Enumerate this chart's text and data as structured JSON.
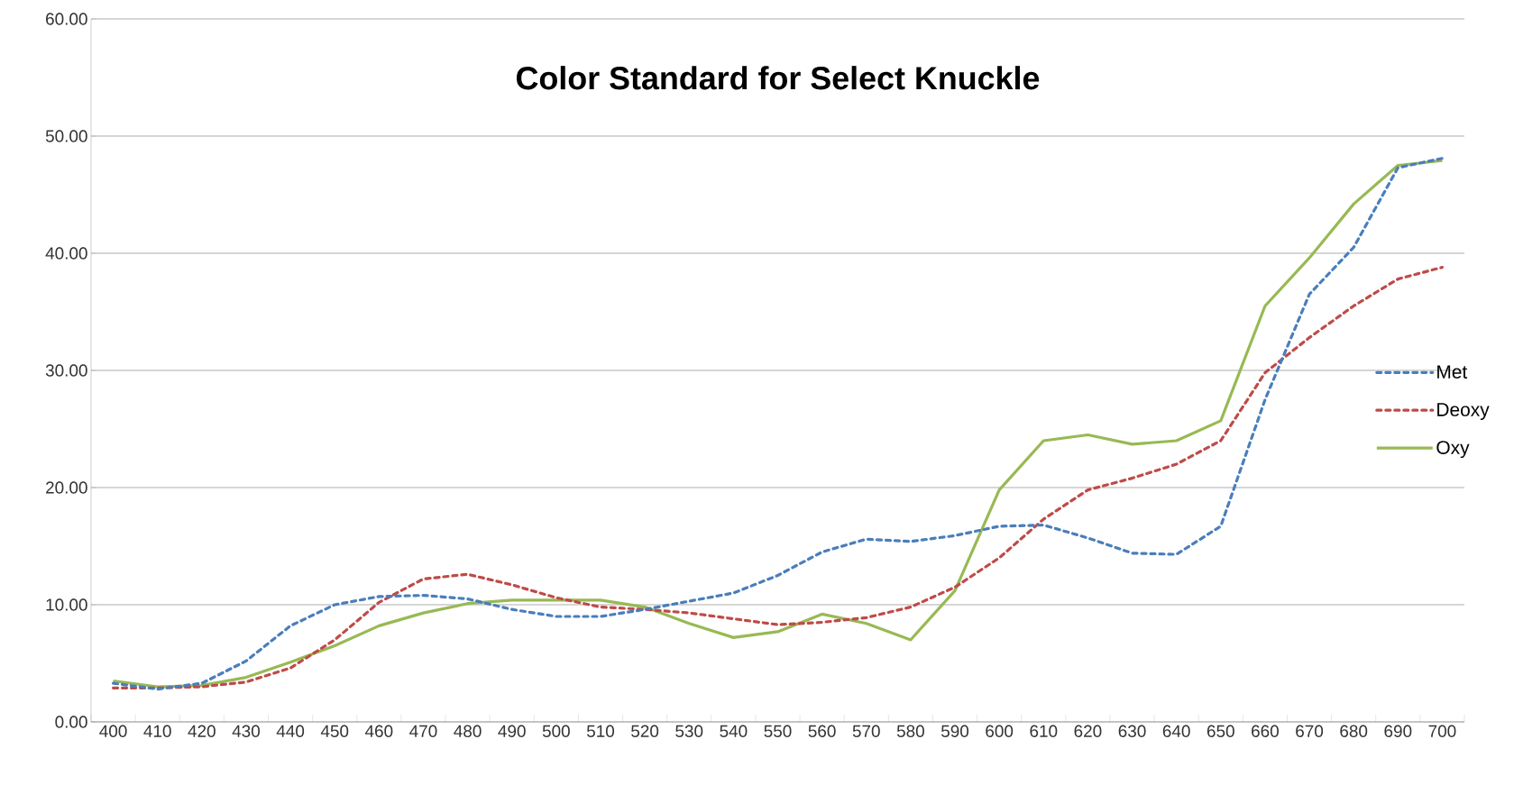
{
  "chart_data": {
    "type": "line",
    "title": "Color Standard for Select Knuckle",
    "categories": [
      "400",
      "410",
      "420",
      "430",
      "440",
      "450",
      "460",
      "470",
      "480",
      "490",
      "500",
      "510",
      "520",
      "530",
      "540",
      "550",
      "560",
      "570",
      "580",
      "590",
      "600",
      "610",
      "620",
      "630",
      "640",
      "650",
      "660",
      "670",
      "680",
      "690",
      "700"
    ],
    "series": [
      {
        "name": "Met",
        "color": "#4a7ebb",
        "line_style": "dashed",
        "values": [
          3.3,
          2.8,
          3.3,
          5.2,
          8.2,
          10.0,
          10.7,
          10.8,
          10.5,
          9.6,
          9.0,
          9.0,
          9.6,
          10.3,
          11.0,
          12.5,
          14.5,
          15.6,
          15.4,
          15.9,
          16.7,
          16.8,
          15.7,
          14.4,
          14.3,
          16.7,
          27.5,
          36.5,
          40.5,
          47.3,
          48.1
        ]
      },
      {
        "name": "Deoxy",
        "color": "#be4b48",
        "line_style": "dashed",
        "values": [
          2.9,
          2.9,
          3.0,
          3.4,
          4.6,
          7.0,
          10.2,
          12.2,
          12.6,
          11.7,
          10.6,
          9.8,
          9.6,
          9.3,
          8.8,
          8.3,
          8.5,
          8.9,
          9.8,
          11.5,
          14.0,
          17.3,
          19.8,
          20.8,
          22.0,
          24.0,
          29.8,
          32.8,
          35.5,
          37.8,
          38.8
        ]
      },
      {
        "name": "Oxy",
        "color": "#98b954",
        "line_style": "solid",
        "values": [
          3.5,
          3.0,
          3.1,
          3.8,
          5.1,
          6.5,
          8.2,
          9.3,
          10.1,
          10.4,
          10.4,
          10.4,
          9.8,
          8.4,
          7.2,
          7.7,
          9.2,
          8.4,
          7.0,
          11.2,
          19.8,
          24.0,
          24.5,
          23.7,
          24.0,
          25.7,
          35.5,
          39.6,
          44.2,
          47.5,
          47.9
        ]
      }
    ],
    "ylim": [
      0,
      60
    ],
    "yticks": [
      {
        "value": 0,
        "label": "0.00"
      },
      {
        "value": 10,
        "label": "10.00"
      },
      {
        "value": 20,
        "label": "20.00"
      },
      {
        "value": 30,
        "label": "30.00"
      },
      {
        "value": 40,
        "label": "40.00"
      },
      {
        "value": 50,
        "label": "50.00"
      },
      {
        "value": 60,
        "label": "60.00"
      }
    ],
    "grid": "y",
    "legend": "right",
    "marker": "none"
  }
}
